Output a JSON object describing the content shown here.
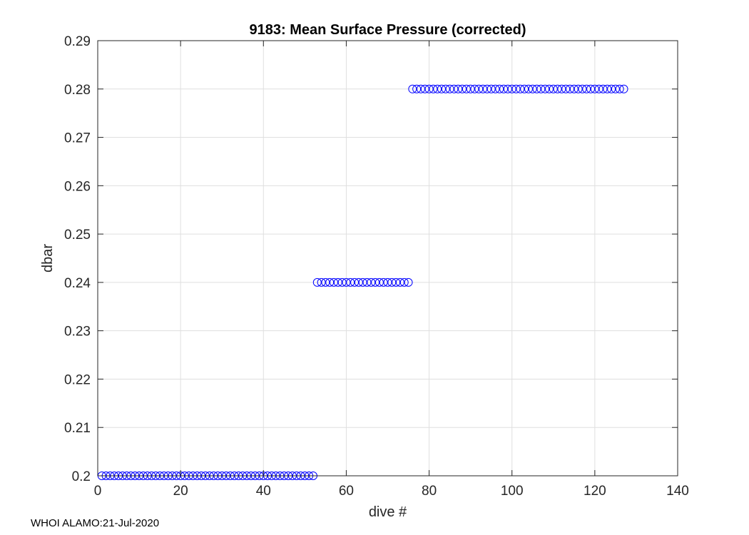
{
  "footer": "WHOI ALAMO:21-Jul-2020",
  "chart_data": {
    "type": "scatter",
    "title": "9183: Mean Surface Pressure (corrected)",
    "xlabel": "dive #",
    "ylabel": "dbar",
    "xlim": [
      0,
      140
    ],
    "ylim": [
      0.2,
      0.29
    ],
    "xticks": [
      "0",
      "20",
      "40",
      "60",
      "80",
      "100",
      "120",
      "140"
    ],
    "yticks": [
      "0.2",
      "0.21",
      "0.22",
      "0.23",
      "0.24",
      "0.25",
      "0.26",
      "0.27",
      "0.28",
      "0.29"
    ],
    "grid": true,
    "marker": "open-circle",
    "marker_color": "#0000ff",
    "series": [
      {
        "points": [
          [
            1,
            0.2
          ],
          [
            2,
            0.2
          ],
          [
            3,
            0.2
          ],
          [
            4,
            0.2
          ],
          [
            5,
            0.2
          ],
          [
            6,
            0.2
          ],
          [
            7,
            0.2
          ],
          [
            8,
            0.2
          ],
          [
            9,
            0.2
          ],
          [
            10,
            0.2
          ],
          [
            11,
            0.2
          ],
          [
            12,
            0.2
          ],
          [
            13,
            0.2
          ],
          [
            14,
            0.2
          ],
          [
            15,
            0.2
          ],
          [
            16,
            0.2
          ],
          [
            17,
            0.2
          ],
          [
            18,
            0.2
          ],
          [
            19,
            0.2
          ],
          [
            20,
            0.2
          ],
          [
            21,
            0.2
          ],
          [
            22,
            0.2
          ],
          [
            23,
            0.2
          ],
          [
            24,
            0.2
          ],
          [
            25,
            0.2
          ],
          [
            26,
            0.2
          ],
          [
            27,
            0.2
          ],
          [
            28,
            0.2
          ],
          [
            29,
            0.2
          ],
          [
            30,
            0.2
          ],
          [
            31,
            0.2
          ],
          [
            32,
            0.2
          ],
          [
            33,
            0.2
          ],
          [
            34,
            0.2
          ],
          [
            35,
            0.2
          ],
          [
            36,
            0.2
          ],
          [
            37,
            0.2
          ],
          [
            38,
            0.2
          ],
          [
            39,
            0.2
          ],
          [
            40,
            0.2
          ],
          [
            41,
            0.2
          ],
          [
            42,
            0.2
          ],
          [
            43,
            0.2
          ],
          [
            44,
            0.2
          ],
          [
            45,
            0.2
          ],
          [
            46,
            0.2
          ],
          [
            47,
            0.2
          ],
          [
            48,
            0.2
          ],
          [
            49,
            0.2
          ],
          [
            50,
            0.2
          ],
          [
            51,
            0.2
          ],
          [
            52,
            0.2
          ],
          [
            53,
            0.24
          ],
          [
            54,
            0.24
          ],
          [
            55,
            0.24
          ],
          [
            56,
            0.24
          ],
          [
            57,
            0.24
          ],
          [
            58,
            0.24
          ],
          [
            59,
            0.24
          ],
          [
            60,
            0.24
          ],
          [
            61,
            0.24
          ],
          [
            62,
            0.24
          ],
          [
            63,
            0.24
          ],
          [
            64,
            0.24
          ],
          [
            65,
            0.24
          ],
          [
            66,
            0.24
          ],
          [
            67,
            0.24
          ],
          [
            68,
            0.24
          ],
          [
            69,
            0.24
          ],
          [
            70,
            0.24
          ],
          [
            71,
            0.24
          ],
          [
            72,
            0.24
          ],
          [
            73,
            0.24
          ],
          [
            74,
            0.24
          ],
          [
            75,
            0.24
          ],
          [
            76,
            0.28
          ],
          [
            77,
            0.28
          ],
          [
            78,
            0.28
          ],
          [
            79,
            0.28
          ],
          [
            80,
            0.28
          ],
          [
            81,
            0.28
          ],
          [
            82,
            0.28
          ],
          [
            83,
            0.28
          ],
          [
            84,
            0.28
          ],
          [
            85,
            0.28
          ],
          [
            86,
            0.28
          ],
          [
            87,
            0.28
          ],
          [
            88,
            0.28
          ],
          [
            89,
            0.28
          ],
          [
            90,
            0.28
          ],
          [
            91,
            0.28
          ],
          [
            92,
            0.28
          ],
          [
            93,
            0.28
          ],
          [
            94,
            0.28
          ],
          [
            95,
            0.28
          ],
          [
            96,
            0.28
          ],
          [
            97,
            0.28
          ],
          [
            98,
            0.28
          ],
          [
            99,
            0.28
          ],
          [
            100,
            0.28
          ],
          [
            101,
            0.28
          ],
          [
            102,
            0.28
          ],
          [
            103,
            0.28
          ],
          [
            104,
            0.28
          ],
          [
            105,
            0.28
          ],
          [
            106,
            0.28
          ],
          [
            107,
            0.28
          ],
          [
            108,
            0.28
          ],
          [
            109,
            0.28
          ],
          [
            110,
            0.28
          ],
          [
            111,
            0.28
          ],
          [
            112,
            0.28
          ],
          [
            113,
            0.28
          ],
          [
            114,
            0.28
          ],
          [
            115,
            0.28
          ],
          [
            116,
            0.28
          ],
          [
            117,
            0.28
          ],
          [
            118,
            0.28
          ],
          [
            119,
            0.28
          ],
          [
            120,
            0.28
          ],
          [
            121,
            0.28
          ],
          [
            122,
            0.28
          ],
          [
            123,
            0.28
          ],
          [
            124,
            0.28
          ],
          [
            125,
            0.28
          ],
          [
            126,
            0.28
          ],
          [
            127,
            0.28
          ]
        ]
      }
    ]
  }
}
